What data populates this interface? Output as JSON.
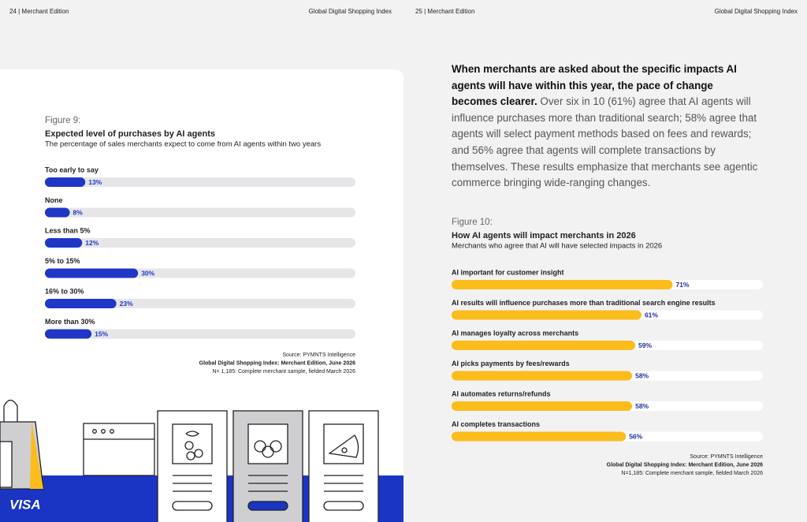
{
  "header": {
    "left_page": "24  |  Merchant Edition",
    "left_title": "Global Digital Shopping Index",
    "right_page": "25  |  Merchant Edition",
    "right_title": "Global Digital Shopping Index"
  },
  "intro": {
    "bold": "When merchants are asked about the specific impacts AI agents will have within this year, the pace of change becomes clearer.",
    "text": "Over six in 10 (61%) agree that AI agents will influence purchases more than traditional search; 58% agree that agents will select payment methods based on fees and rewards; and 56% agree that agents will complete transactions by themselves. These results emphasize that merchants see agentic commerce bringing wide-ranging changes."
  },
  "logo": "VISA",
  "chart_data": [
    {
      "type": "bar",
      "figure_label": "Figure 9:",
      "title": "Expected level of purchases by AI agents",
      "subtitle": "The percentage of sales merchants expect to come from AI agents within two years",
      "categories": [
        "Too early to say",
        "None",
        "Less than 5%",
        "5% to 15%",
        "16% to 30%",
        "More than 30%"
      ],
      "values": [
        13,
        8,
        12,
        30,
        23,
        15
      ],
      "value_labels": [
        "13%",
        "8%",
        "12%",
        "30%",
        "23%",
        "15%"
      ],
      "color": "#1f36c7",
      "xlim": [
        0,
        100
      ],
      "source": [
        "Source: PYMNTS Intelligence",
        "Global Digital Shopping Index: Merchant Edition, June 2026",
        "N= 1,185: Complete merchant sample, fielded March 2026"
      ]
    },
    {
      "type": "bar",
      "figure_label": "Figure 10:",
      "title": "How AI agents will impact merchants in 2026",
      "subtitle": "Merchants who agree that AI will have selected impacts in 2026",
      "categories": [
        "AI important for customer insight",
        "AI results will influence purchases more than traditional search engine results",
        "AI manages loyalty across merchants",
        "AI picks payments by fees/rewards",
        "AI automates returns/refunds",
        "AI completes transactions"
      ],
      "values": [
        71,
        61,
        59,
        58,
        58,
        56
      ],
      "value_labels": [
        "71%",
        "61%",
        "59%",
        "58%",
        "58%",
        "56%"
      ],
      "color": "#fbbc1c",
      "xlim": [
        0,
        100
      ],
      "source": [
        "Source: PYMNTS Intelligence",
        "Global Digital Shopping Index: Merchant Edition, June 2026",
        "N=1,185: Complete merchant sample, fielded March 2026"
      ]
    }
  ]
}
